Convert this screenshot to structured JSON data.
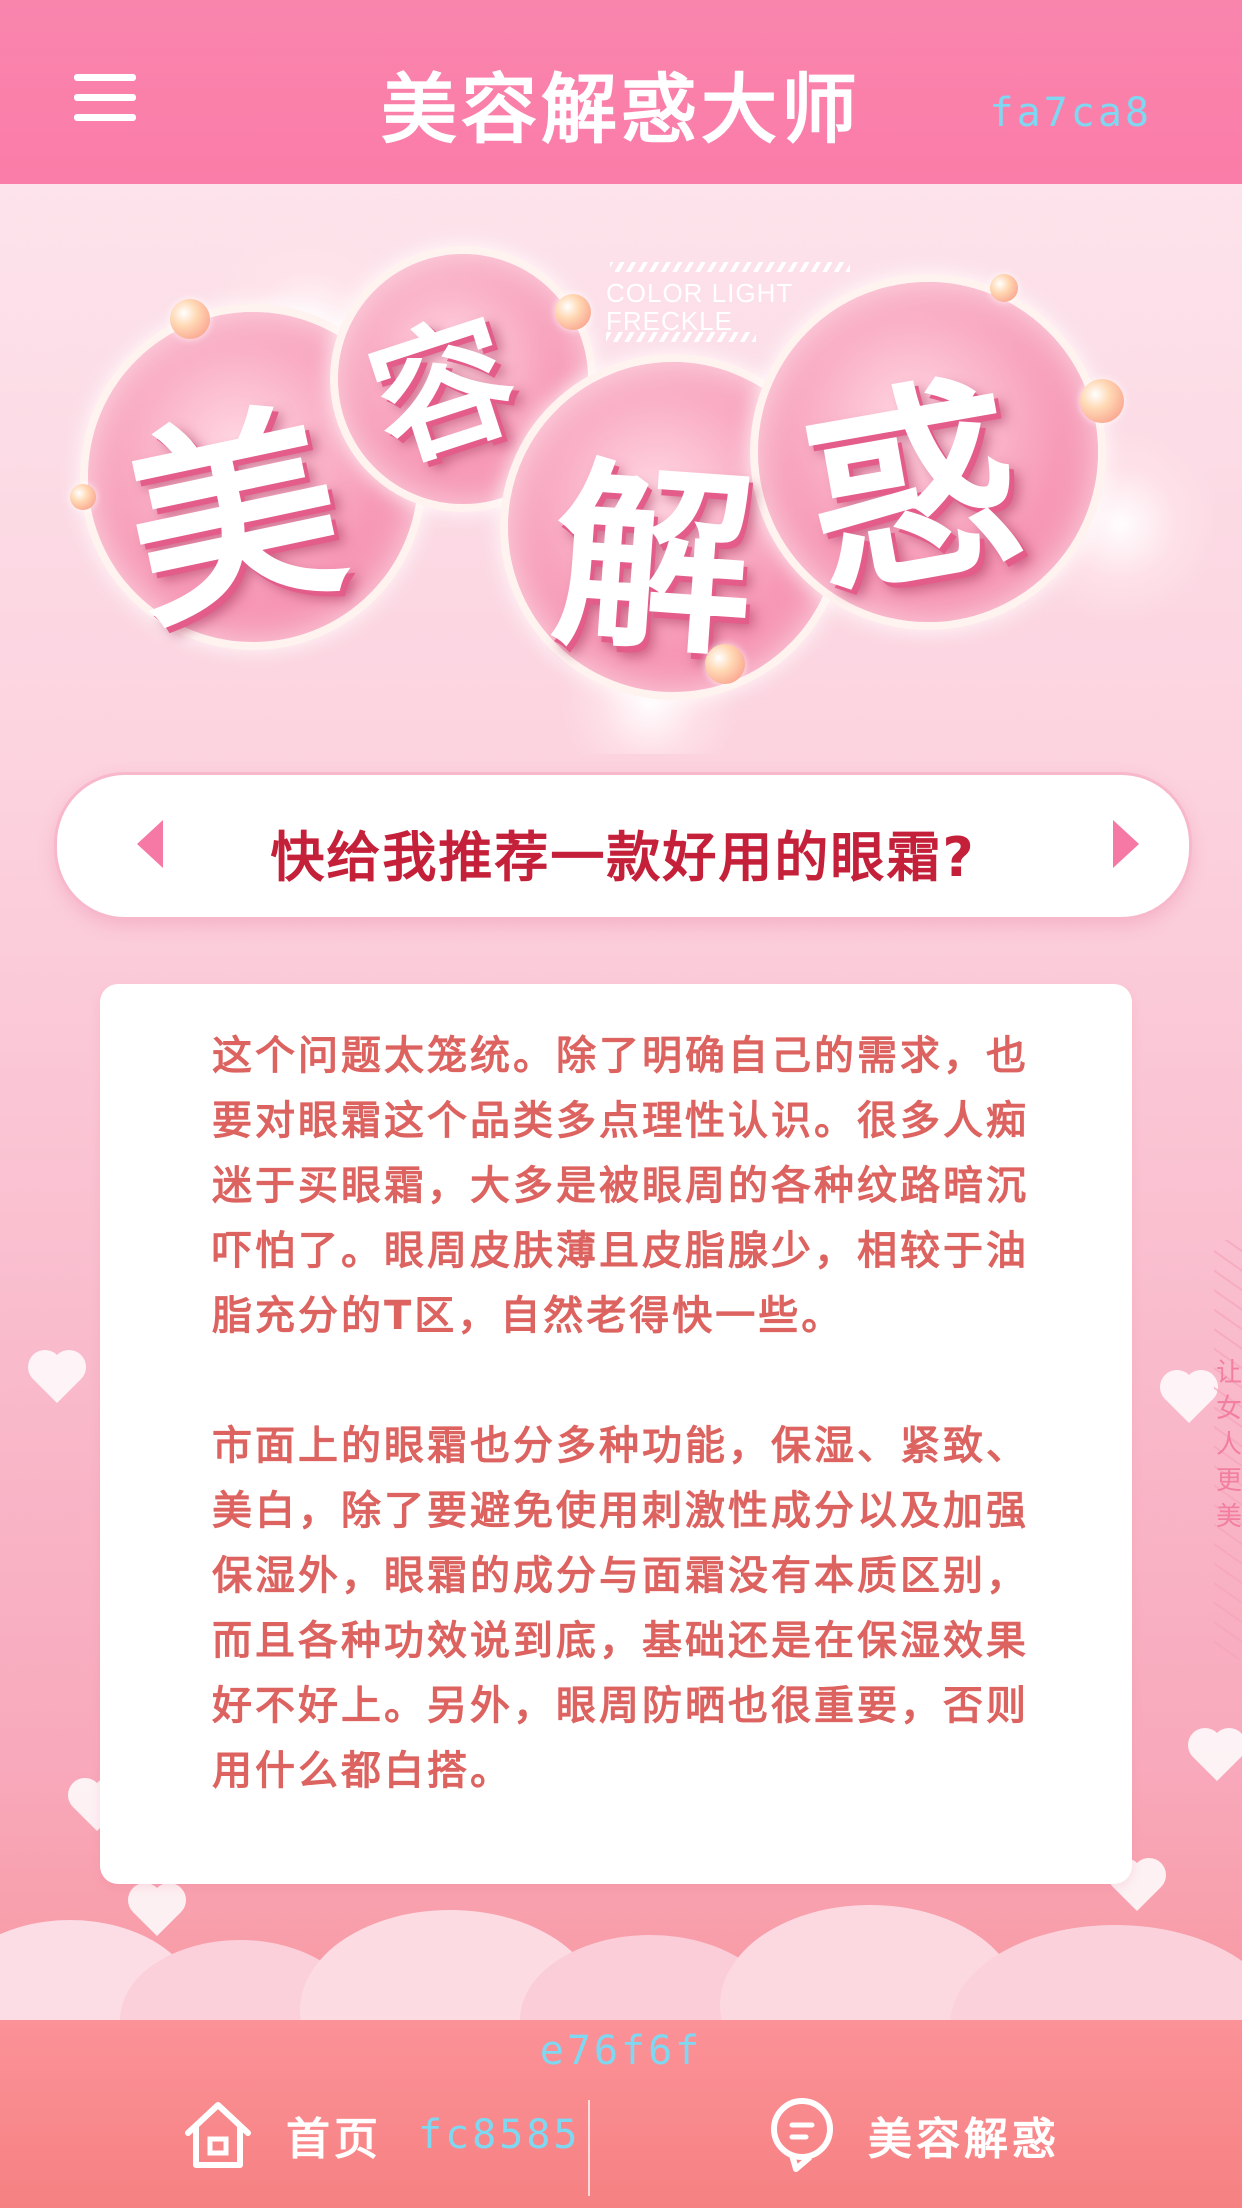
{
  "header": {
    "title": "美容解惑大师",
    "color_code": "fa7ca8"
  },
  "banner": {
    "glyphs": [
      "美",
      "容",
      "解",
      "惑"
    ],
    "en_line1": "COLOR LIGHT",
    "en_line2": "FRECKLE"
  },
  "question": {
    "text": "快给我推荐一款好用的眼霜?"
  },
  "answer": {
    "paragraphs": [
      "这个问题太笼统。除了明确自己的需求，也要对眼霜这个品类多点理性认识。很多人痴迷于买眼霜，大多是被眼周的各种纹路暗沉吓怕了。眼周皮肤薄且皮脂腺少，相较于油脂充分的T区，自然老得快一些。",
      "市面上的眼霜也分多种功能，保湿、紧致、美白，除了要避免使用刺激性成分以及加强保湿外，眼霜的成分与面霜没有本质区别，而且各种功效说到底，基础还是在保湿效果好不好上。另外，眼周防晒也很重要，否则用什么都白搭。"
    ]
  },
  "side_text": "让女人更美",
  "bottom_nav": {
    "color_code": "e76f6f",
    "home_label": "首页",
    "home_code": "fc8585",
    "beauty_label": "美容解惑"
  },
  "colors": {
    "header_bg": "#fa7ca8",
    "nav_bg": "#e76f6f",
    "question_text": "#c4203a",
    "answer_text": "#dc6360",
    "code_text": "#7fd8f2"
  },
  "icons": {
    "menu": "hamburger-menu-icon",
    "home": "home-icon",
    "beauty": "chat-bubble-icon",
    "prev": "arrow-left-icon",
    "next": "arrow-right-icon"
  }
}
